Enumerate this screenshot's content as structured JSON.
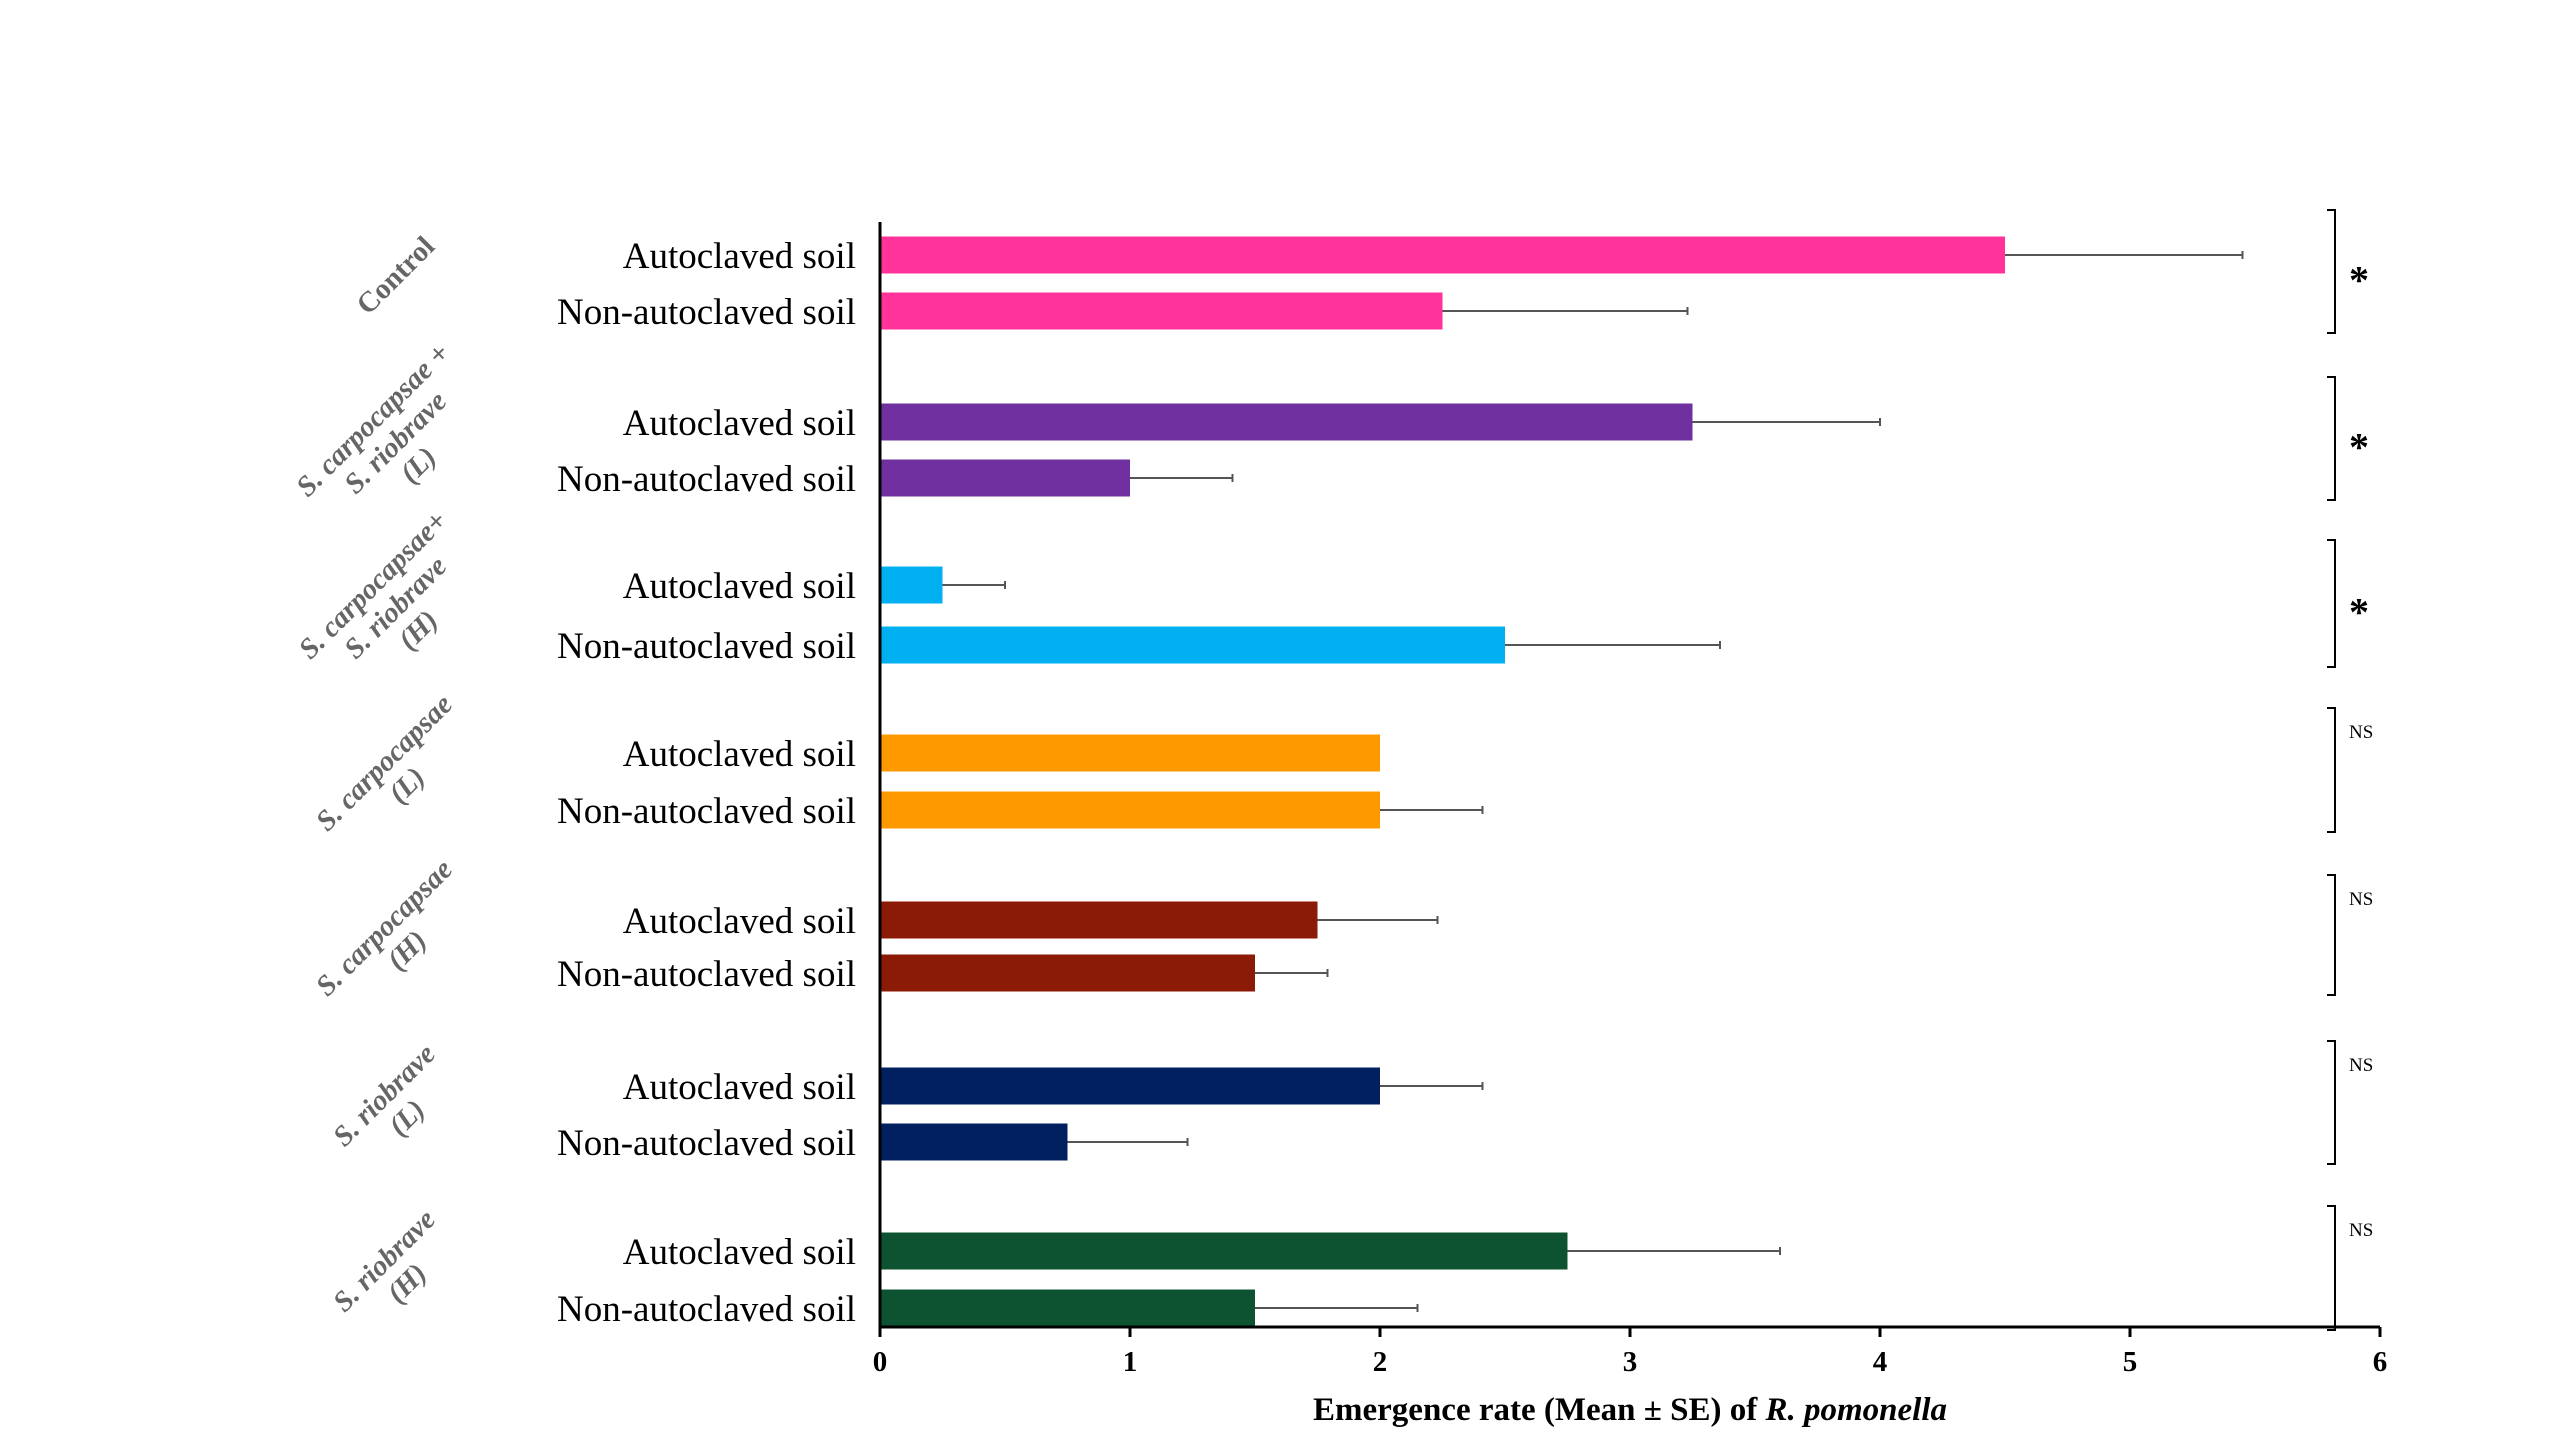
{
  "chart_data": {
    "type": "bar",
    "orientation": "horizontal",
    "xlabel_parts": [
      {
        "text": "Emergence rate (Mean ± SE) of ",
        "italic": false
      },
      {
        "text": "R. pomonella",
        "italic": true
      }
    ],
    "xlim": [
      0,
      6
    ],
    "xticks": [
      "0",
      "1",
      "2",
      "3",
      "4",
      "5",
      "6"
    ],
    "grid": false,
    "groups": [
      {
        "label_lines": [
          "Control"
        ],
        "italic": false,
        "color": "#ff3399",
        "significance": "*",
        "bars": [
          {
            "label": "Autoclaved soil",
            "value": 4.5,
            "se": 0.95
          },
          {
            "label": "Non-autoclaved soil",
            "value": 2.25,
            "se": 0.98
          }
        ]
      },
      {
        "label_lines": [
          "S. carpocapsae +",
          "S. riobrave",
          "(L)"
        ],
        "italic": true,
        "color": "#7030a0",
        "significance": "*",
        "bars": [
          {
            "label": "Autoclaved soil",
            "value": 3.25,
            "se": 0.75
          },
          {
            "label": "Non-autoclaved soil",
            "value": 1.0,
            "se": 0.41
          }
        ]
      },
      {
        "label_lines": [
          "S. carpocapsae+",
          "S. riobrave",
          "(H)"
        ],
        "italic": true,
        "color": "#00b0f0",
        "significance": "*",
        "bars": [
          {
            "label": "Autoclaved soil",
            "value": 0.25,
            "se": 0.25
          },
          {
            "label": "Non-autoclaved soil",
            "value": 2.5,
            "se": 0.86
          }
        ]
      },
      {
        "label_lines": [
          "S. carpocapsae",
          "(L)"
        ],
        "italic": true,
        "color": "#ff9900",
        "significance": "NS",
        "bars": [
          {
            "label": "Autoclaved soil",
            "value": 2.0,
            "se": 0.0
          },
          {
            "label": "Non-autoclaved soil",
            "value": 2.0,
            "se": 0.41
          }
        ]
      },
      {
        "label_lines": [
          "S. carpocapsae",
          "(H)"
        ],
        "italic": true,
        "color": "#8b1a06",
        "significance": "NS",
        "bars": [
          {
            "label": "Autoclaved soil",
            "value": 1.75,
            "se": 0.48
          },
          {
            "label": "Non-autoclaved soil",
            "value": 1.5,
            "se": 0.29
          }
        ]
      },
      {
        "label_lines": [
          "S. riobrave",
          "(L)"
        ],
        "italic": true,
        "color": "#002060",
        "significance": "NS",
        "bars": [
          {
            "label": "Autoclaved soil",
            "value": 2.0,
            "se": 0.41
          },
          {
            "label": "Non-autoclaved soil",
            "value": 0.75,
            "se": 0.48
          }
        ]
      },
      {
        "label_lines": [
          "S. riobrave",
          "(H)"
        ],
        "italic": true,
        "color": "#0d5332",
        "significance": "NS",
        "bars": [
          {
            "label": "Autoclaved soil",
            "value": 2.75,
            "se": 0.85
          },
          {
            "label": "Non-autoclaved soil",
            "value": 1.5,
            "se": 0.65
          }
        ]
      }
    ]
  }
}
